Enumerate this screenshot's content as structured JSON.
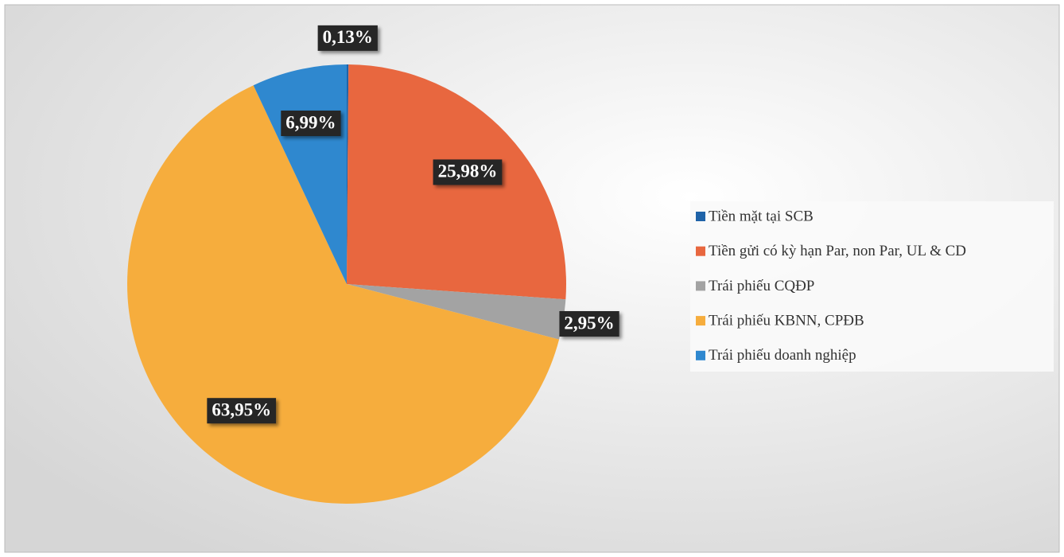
{
  "chart_data": {
    "type": "pie",
    "categories": [
      "Tiền mặt tại SCB",
      "Tiền gửi có kỳ hạn Par, non Par, UL & CD",
      "Trái phiếu CQĐP",
      "Trái phiếu KBNN, CPĐB",
      "Trái phiếu doanh nghiệp"
    ],
    "values": [
      0.13,
      25.98,
      2.95,
      63.95,
      6.99
    ],
    "value_labels": [
      "0,13%",
      "25,98%",
      "2,95%",
      "63,95%",
      "6,99%"
    ],
    "colors": [
      "#1f63a8",
      "#e8673f",
      "#a3a3a3",
      "#f6ad3d",
      "#2f88cf"
    ]
  }
}
